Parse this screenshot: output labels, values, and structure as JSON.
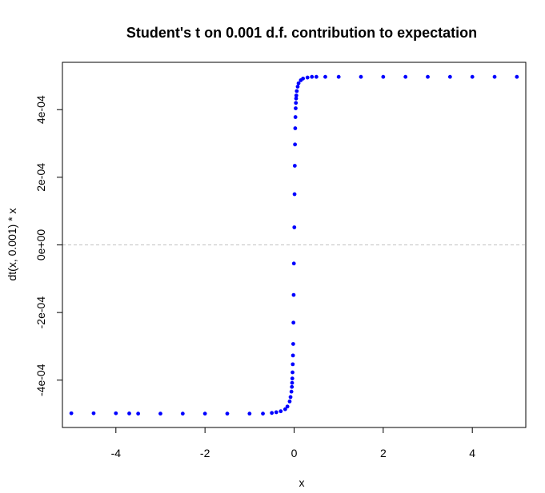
{
  "chart_data": {
    "type": "scatter",
    "title": "Student's t on 0.001 d.f. contribution to expectation",
    "xlabel": "x",
    "ylabel": "dt(x, 0.001) * x",
    "xlim": [
      -5.2,
      5.2
    ],
    "ylim": [
      -0.00054,
      0.00054
    ],
    "x_ticks": [
      {
        "value": -4,
        "label": "-4"
      },
      {
        "value": -2,
        "label": "-2"
      },
      {
        "value": 0,
        "label": "0"
      },
      {
        "value": 2,
        "label": "2"
      },
      {
        "value": 4,
        "label": "4"
      }
    ],
    "y_ticks": [
      {
        "value": -0.0004,
        "label": "-4e-04"
      },
      {
        "value": -0.0002,
        "label": "-2e-04"
      },
      {
        "value": 0,
        "label": "0e+00"
      },
      {
        "value": 0.0002,
        "label": "2e-04"
      },
      {
        "value": 0.0004,
        "label": "4e-04"
      }
    ],
    "reference_line": {
      "y": 0,
      "style": "dashed",
      "color": "#c0c0c0"
    },
    "point_color": "#0000ff",
    "grid": false,
    "series": [
      {
        "x": [
          -5.0,
          -4.5,
          -4.0,
          -3.7,
          -3.5,
          -3.0,
          -2.5,
          -2.0,
          -1.5,
          -1.0,
          -0.7,
          -0.5,
          -0.4,
          -0.3,
          -0.2,
          -0.15,
          -0.1,
          -0.08,
          -0.06,
          -0.05,
          -0.045,
          -0.04,
          -0.035,
          -0.03,
          -0.025,
          -0.02,
          -0.015,
          -0.01,
          -0.005,
          0.005,
          0.01,
          0.015,
          0.02,
          0.025,
          0.03,
          0.035,
          0.04,
          0.045,
          0.05,
          0.06,
          0.08,
          0.1,
          0.15,
          0.2,
          0.3,
          0.4,
          0.5,
          0.7,
          1.0,
          1.5,
          2.0,
          2.5,
          3.0,
          3.5,
          4.0,
          4.5,
          5.0
        ],
        "y": [
          -0.000498,
          -0.000498,
          -0.000498,
          -0.0004985,
          -0.000499,
          -0.000499,
          -0.000499,
          -0.000499,
          -0.000499,
          -0.000499,
          -0.000499,
          -0.000497,
          -0.000495,
          -0.000492,
          -0.000486,
          -0.000478,
          -0.000463,
          -0.00045,
          -0.000434,
          -0.00042,
          -0.000408,
          -0.000395,
          -0.000377,
          -0.000353,
          -0.000327,
          -0.000293,
          -0.00023,
          -0.000148,
          -5.5e-05,
          5.2e-05,
          0.00015,
          0.000234,
          0.000297,
          0.000345,
          0.000378,
          0.000404,
          0.00042,
          0.000433,
          0.000442,
          0.000455,
          0.000468,
          0.000478,
          0.000487,
          0.000492,
          0.000495,
          0.000497,
          0.000497,
          0.000497,
          0.000497,
          0.000497,
          0.000497,
          0.000497,
          0.000497,
          0.000497,
          0.000497,
          0.000497,
          0.000497
        ]
      }
    ]
  }
}
